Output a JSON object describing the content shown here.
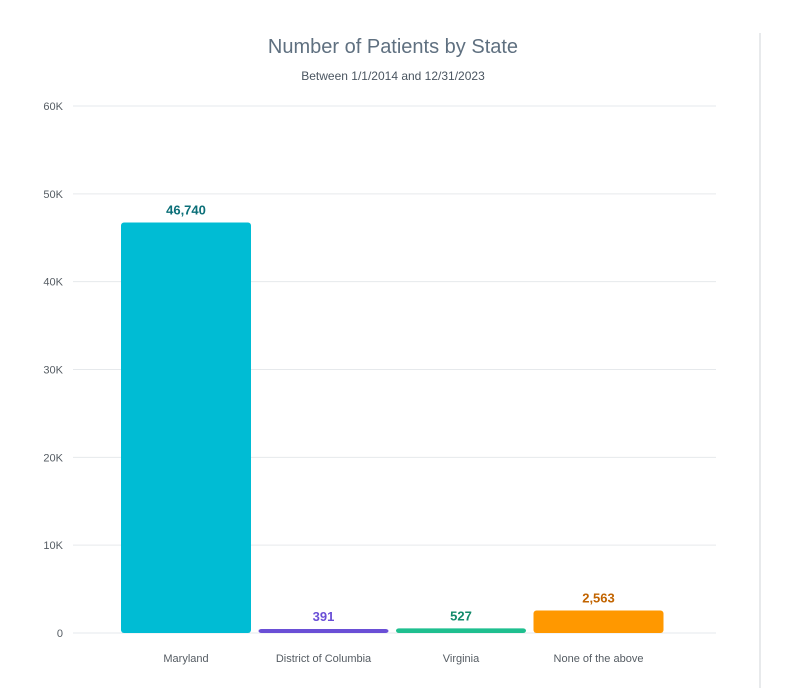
{
  "chart_data": {
    "type": "bar",
    "title": "Number of Patients by State",
    "subtitle": "Between 1/1/2014 and 12/31/2023",
    "categories": [
      "Maryland",
      "District of Columbia",
      "Virginia",
      "None of the above"
    ],
    "values": [
      46740,
      391,
      527,
      2563
    ],
    "value_labels": [
      "46,740",
      "391",
      "527",
      "2,563"
    ],
    "bar_colors": [
      "#00bcd4",
      "#6a4fd6",
      "#1fbf8f",
      "#ff9800"
    ],
    "label_colors": [
      "#0b6f78",
      "#6a4fd6",
      "#138a6a",
      "#c26400"
    ],
    "ylim": [
      0,
      60000
    ],
    "yticks": [
      0,
      10000,
      20000,
      30000,
      40000,
      50000,
      60000
    ],
    "ytick_labels": [
      "0",
      "10K",
      "20K",
      "30K",
      "40K",
      "50K",
      "60K"
    ],
    "grid": true,
    "xlabel": "",
    "ylabel": ""
  }
}
